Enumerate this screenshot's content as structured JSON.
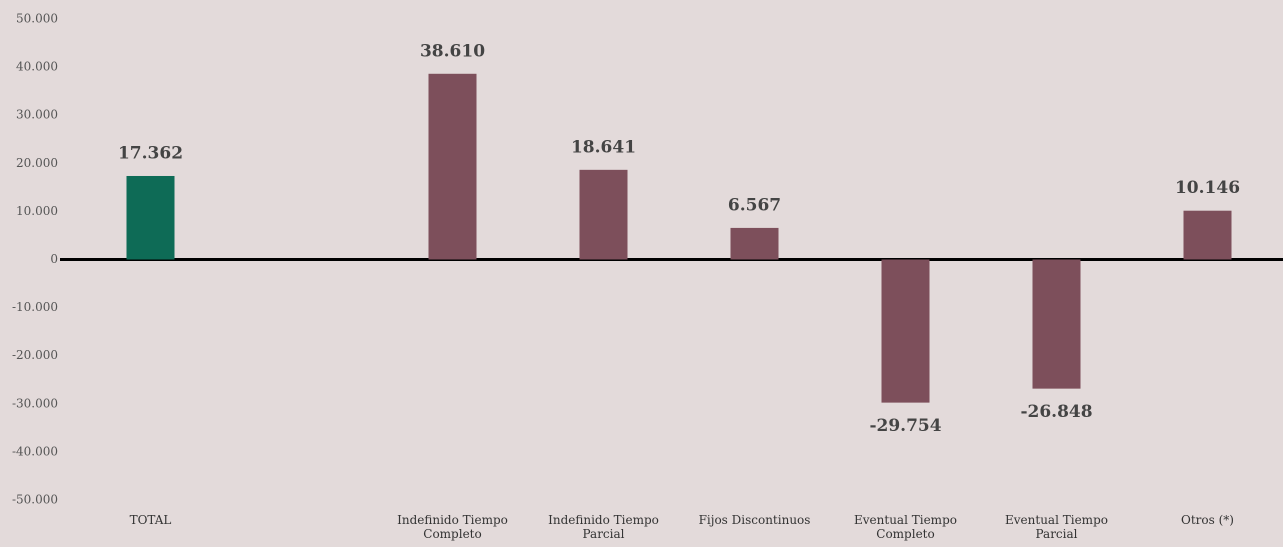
{
  "chart_data": {
    "type": "bar",
    "categories": [
      "TOTAL",
      null,
      "Indefinido Tiempo Completo",
      "Indefinido Tiempo Parcial",
      "Fijos Discontinuos",
      "Eventual Tiempo Completo",
      "Eventual Tiempo Parcial",
      "Otros (*)"
    ],
    "values": [
      17362,
      null,
      38610,
      18641,
      6567,
      -29754,
      -26848,
      10146
    ],
    "value_labels": [
      "17.362",
      null,
      "38.610",
      "18.641",
      "6.567",
      "-29.754",
      "-26.848",
      "10.146"
    ],
    "colors": [
      "#0e6b56",
      null,
      "#7d4f5b",
      "#7d4f5b",
      "#7d4f5b",
      "#7d4f5b",
      "#7d4f5b",
      "#7d4f5b"
    ],
    "ylim": [
      -50000,
      50000
    ],
    "yticks": [
      {
        "value": -50000,
        "label": "-50.000"
      },
      {
        "value": -40000,
        "label": "-40.000"
      },
      {
        "value": -30000,
        "label": "-30.000"
      },
      {
        "value": -20000,
        "label": "-20.000"
      },
      {
        "value": -10000,
        "label": "-10.000"
      },
      0,
      {
        "value": 10000,
        "label": "10.000"
      },
      {
        "value": 20000,
        "label": "20.000"
      },
      {
        "value": 30000,
        "label": "30.000"
      },
      {
        "value": 40000,
        "label": "40.000"
      },
      {
        "value": 50000,
        "label": "50.000"
      }
    ],
    "grid": false
  }
}
